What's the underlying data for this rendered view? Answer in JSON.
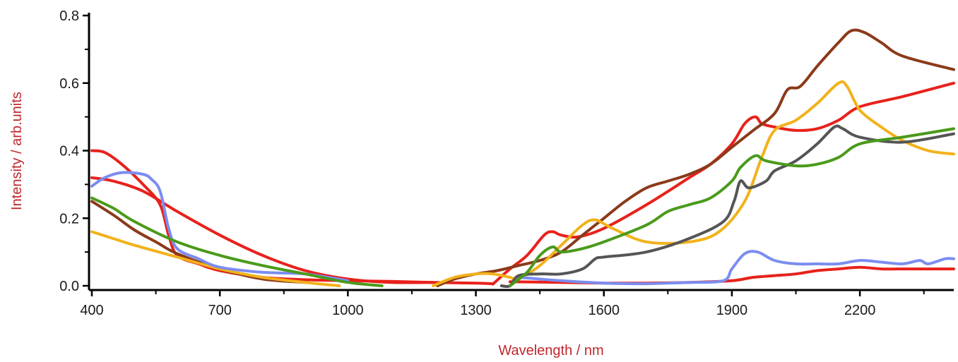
{
  "chart_data": {
    "type": "line",
    "title": "",
    "xlabel": "Wavelength / nm",
    "ylabel": "Intensity / arb.units",
    "xlim": [
      400,
      2420
    ],
    "ylim": [
      -0.01,
      0.8
    ],
    "x_major_ticks": [
      400,
      700,
      1000,
      1300,
      1600,
      1900,
      2200
    ],
    "x_tick_labels": [
      "400",
      "700",
      "1000",
      "1300",
      "1600",
      "1900",
      "2200"
    ],
    "x_minor_ticks": [
      550,
      850,
      1150,
      1450,
      1750,
      2050,
      2350
    ],
    "y_major_ticks": [
      0.0,
      0.2,
      0.4,
      0.6,
      0.8
    ],
    "y_tick_labels": [
      "0.0",
      "0.2",
      "0.4",
      "0.6",
      "0.8"
    ],
    "y_minor_ticks": [
      0.1,
      0.3,
      0.5,
      0.7
    ],
    "grid": false,
    "legend": "none",
    "series": [
      {
        "color": "#e8211b",
        "points": [
          [
            400,
            0.4
          ],
          [
            430,
            0.395
          ],
          [
            470,
            0.36
          ],
          [
            520,
            0.3
          ],
          [
            560,
            0.24
          ],
          [
            580,
            0.15
          ],
          [
            600,
            0.09
          ],
          [
            650,
            0.065
          ],
          [
            700,
            0.045
          ],
          [
            800,
            0.025
          ],
          [
            900,
            0.018
          ],
          [
            1000,
            0.015
          ],
          [
            1100,
            0.013
          ],
          [
            1200,
            0.01
          ],
          [
            1300,
            0.008
          ],
          [
            1340,
            0.006
          ]
        ]
      },
      {
        "color": "#e8211b",
        "points": [
          [
            1340,
            0.005
          ],
          [
            1380,
            0.05
          ],
          [
            1420,
            0.09
          ],
          [
            1460,
            0.15
          ],
          [
            1480,
            0.16
          ],
          [
            1500,
            0.15
          ],
          [
            1540,
            0.145
          ],
          [
            1600,
            0.17
          ],
          [
            1700,
            0.24
          ],
          [
            1800,
            0.32
          ],
          [
            1850,
            0.36
          ],
          [
            1900,
            0.42
          ],
          [
            1930,
            0.48
          ],
          [
            1955,
            0.5
          ],
          [
            1970,
            0.48
          ],
          [
            2000,
            0.47
          ],
          [
            2050,
            0.46
          ],
          [
            2100,
            0.465
          ],
          [
            2150,
            0.49
          ],
          [
            2200,
            0.53
          ],
          [
            2300,
            0.56
          ],
          [
            2420,
            0.6
          ]
        ]
      },
      {
        "color": "#e8211b",
        "points": [
          [
            400,
            0.32
          ],
          [
            450,
            0.31
          ],
          [
            520,
            0.28
          ],
          [
            600,
            0.22
          ],
          [
            700,
            0.15
          ],
          [
            800,
            0.09
          ],
          [
            900,
            0.045
          ],
          [
            1000,
            0.02
          ],
          [
            1100,
            0.01
          ],
          [
            1200,
            0.01
          ]
        ]
      },
      {
        "color": "#e8211b",
        "points": [
          [
            1380,
            0.012
          ],
          [
            1500,
            0.01
          ],
          [
            1600,
            0.008
          ],
          [
            1700,
            0.008
          ],
          [
            1800,
            0.01
          ],
          [
            1900,
            0.015
          ],
          [
            1950,
            0.025
          ],
          [
            2000,
            0.03
          ],
          [
            2050,
            0.035
          ],
          [
            2100,
            0.045
          ],
          [
            2150,
            0.05
          ],
          [
            2200,
            0.055
          ],
          [
            2250,
            0.05
          ],
          [
            2300,
            0.05
          ],
          [
            2420,
            0.05
          ]
        ]
      },
      {
        "color": "#8b3a1a",
        "points": [
          [
            400,
            0.25
          ],
          [
            450,
            0.21
          ],
          [
            500,
            0.165
          ],
          [
            550,
            0.13
          ],
          [
            600,
            0.095
          ],
          [
            700,
            0.05
          ],
          [
            800,
            0.02
          ],
          [
            900,
            0.01
          ]
        ]
      },
      {
        "color": "#8b3a1a",
        "points": [
          [
            1210,
            0.0
          ],
          [
            1250,
            0.02
          ],
          [
            1300,
            0.035
          ],
          [
            1350,
            0.045
          ],
          [
            1400,
            0.06
          ],
          [
            1450,
            0.075
          ],
          [
            1500,
            0.1
          ],
          [
            1550,
            0.15
          ],
          [
            1600,
            0.2
          ],
          [
            1650,
            0.25
          ],
          [
            1700,
            0.29
          ],
          [
            1750,
            0.31
          ],
          [
            1800,
            0.33
          ],
          [
            1850,
            0.36
          ],
          [
            1900,
            0.41
          ],
          [
            1950,
            0.46
          ],
          [
            2000,
            0.51
          ],
          [
            2030,
            0.58
          ],
          [
            2060,
            0.59
          ],
          [
            2100,
            0.65
          ],
          [
            2150,
            0.72
          ],
          [
            2180,
            0.755
          ],
          [
            2210,
            0.75
          ],
          [
            2250,
            0.72
          ],
          [
            2300,
            0.68
          ],
          [
            2420,
            0.64
          ]
        ]
      },
      {
        "color": "#f2b21b",
        "points": [
          [
            400,
            0.16
          ],
          [
            450,
            0.14
          ],
          [
            500,
            0.12
          ],
          [
            600,
            0.085
          ],
          [
            700,
            0.05
          ],
          [
            800,
            0.025
          ],
          [
            900,
            0.01
          ],
          [
            980,
            0.0
          ]
        ]
      },
      {
        "color": "#f2b21b",
        "points": [
          [
            1200,
            0.0
          ],
          [
            1250,
            0.025
          ],
          [
            1300,
            0.035
          ],
          [
            1340,
            0.035
          ],
          [
            1380,
            0.025
          ],
          [
            1400,
            0.02
          ],
          [
            1450,
            0.06
          ],
          [
            1500,
            0.12
          ],
          [
            1550,
            0.18
          ],
          [
            1580,
            0.195
          ],
          [
            1620,
            0.17
          ],
          [
            1700,
            0.13
          ],
          [
            1800,
            0.13
          ],
          [
            1870,
            0.16
          ],
          [
            1930,
            0.25
          ],
          [
            1970,
            0.38
          ],
          [
            2000,
            0.46
          ],
          [
            2050,
            0.49
          ],
          [
            2100,
            0.54
          ],
          [
            2150,
            0.6
          ],
          [
            2170,
            0.59
          ],
          [
            2200,
            0.52
          ],
          [
            2250,
            0.47
          ],
          [
            2300,
            0.43
          ],
          [
            2360,
            0.4
          ],
          [
            2420,
            0.39
          ]
        ]
      },
      {
        "color": "#7b8df0",
        "points": [
          [
            400,
            0.295
          ],
          [
            430,
            0.32
          ],
          [
            470,
            0.335
          ],
          [
            520,
            0.33
          ],
          [
            540,
            0.315
          ],
          [
            560,
            0.28
          ],
          [
            580,
            0.17
          ],
          [
            600,
            0.11
          ],
          [
            650,
            0.08
          ],
          [
            700,
            0.055
          ],
          [
            800,
            0.04
          ],
          [
            900,
            0.035
          ],
          [
            1000,
            0.015
          ]
        ]
      },
      {
        "color": "#7b8df0",
        "points": [
          [
            1400,
            0.025
          ],
          [
            1500,
            0.015
          ],
          [
            1600,
            0.008
          ],
          [
            1700,
            0.006
          ],
          [
            1750,
            0.008
          ],
          [
            1800,
            0.01
          ],
          [
            1880,
            0.015
          ],
          [
            1900,
            0.05
          ],
          [
            1930,
            0.095
          ],
          [
            1960,
            0.1
          ],
          [
            2000,
            0.075
          ],
          [
            2050,
            0.065
          ],
          [
            2100,
            0.065
          ],
          [
            2150,
            0.065
          ],
          [
            2200,
            0.075
          ],
          [
            2250,
            0.07
          ],
          [
            2300,
            0.065
          ],
          [
            2340,
            0.075
          ],
          [
            2360,
            0.065
          ],
          [
            2400,
            0.08
          ],
          [
            2420,
            0.08
          ]
        ]
      },
      {
        "color": "#555555",
        "points": [
          [
            1360,
            0.0
          ],
          [
            1380,
            0.0
          ],
          [
            1400,
            0.03
          ],
          [
            1450,
            0.035
          ],
          [
            1500,
            0.035
          ],
          [
            1550,
            0.05
          ],
          [
            1580,
            0.08
          ],
          [
            1600,
            0.085
          ],
          [
            1700,
            0.1
          ],
          [
            1800,
            0.14
          ],
          [
            1880,
            0.19
          ],
          [
            1905,
            0.25
          ],
          [
            1920,
            0.31
          ],
          [
            1940,
            0.29
          ],
          [
            1980,
            0.31
          ],
          [
            2000,
            0.34
          ],
          [
            2050,
            0.37
          ],
          [
            2100,
            0.42
          ],
          [
            2140,
            0.47
          ],
          [
            2160,
            0.465
          ],
          [
            2200,
            0.44
          ],
          [
            2300,
            0.425
          ],
          [
            2420,
            0.45
          ]
        ]
      },
      {
        "color": "#4a9a1b",
        "points": [
          [
            400,
            0.26
          ],
          [
            450,
            0.23
          ],
          [
            500,
            0.19
          ],
          [
            600,
            0.13
          ],
          [
            700,
            0.09
          ],
          [
            800,
            0.06
          ],
          [
            900,
            0.035
          ],
          [
            1000,
            0.01
          ],
          [
            1080,
            0.0
          ]
        ]
      },
      {
        "color": "#4a9a1b",
        "points": [
          [
            1380,
            0.0
          ],
          [
            1420,
            0.04
          ],
          [
            1450,
            0.09
          ],
          [
            1480,
            0.115
          ],
          [
            1500,
            0.1
          ],
          [
            1550,
            0.11
          ],
          [
            1600,
            0.13
          ],
          [
            1700,
            0.18
          ],
          [
            1750,
            0.22
          ],
          [
            1800,
            0.24
          ],
          [
            1850,
            0.26
          ],
          [
            1900,
            0.31
          ],
          [
            1920,
            0.35
          ],
          [
            1955,
            0.385
          ],
          [
            1980,
            0.37
          ],
          [
            2050,
            0.355
          ],
          [
            2100,
            0.36
          ],
          [
            2150,
            0.38
          ],
          [
            2200,
            0.42
          ],
          [
            2300,
            0.44
          ],
          [
            2420,
            0.465
          ]
        ]
      }
    ]
  }
}
